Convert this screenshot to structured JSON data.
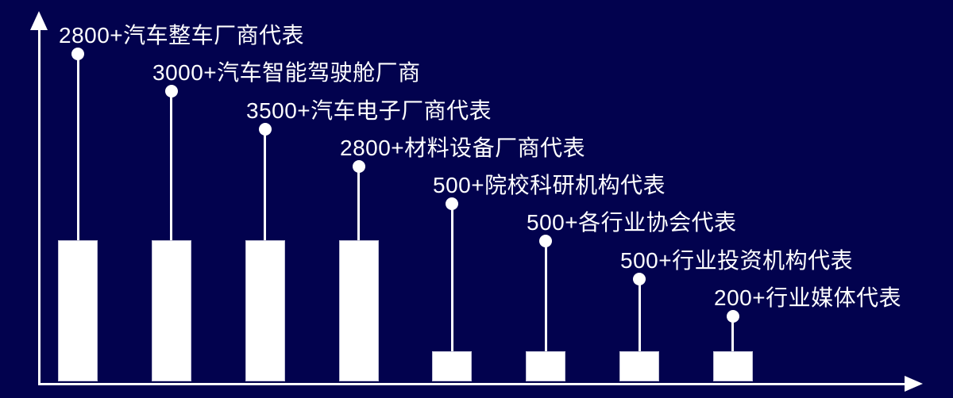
{
  "chart_data": {
    "type": "bar",
    "subtype": "lollipop-labeled pictorial bar chart",
    "title": "",
    "xlabel": "",
    "ylabel": "",
    "legend": "none",
    "gridlines": false,
    "axis_ticks": "none",
    "colors": {
      "background": "#02024e",
      "foreground": "#ffffff"
    },
    "categories": [
      "汽车整车厂商代表",
      "汽车智能驾驶舱厂商",
      "汽车电子厂商代表",
      "材料设备厂商代表",
      "院校科研机构代表",
      "各行业协会代表",
      "行业投资机构代表",
      "行业媒体代表"
    ],
    "values": [
      2800,
      3000,
      3500,
      2800,
      500,
      500,
      500,
      200
    ],
    "items": [
      {
        "label": "2800+汽车整车厂商代表",
        "value": 2800,
        "bar_size": "tall"
      },
      {
        "label": "3000+汽车智能驾驶舱厂商",
        "value": 3000,
        "bar_size": "tall"
      },
      {
        "label": "3500+汽车电子厂商代表",
        "value": 3500,
        "bar_size": "tall"
      },
      {
        "label": "2800+材料设备厂商代表",
        "value": 2800,
        "bar_size": "tall"
      },
      {
        "label": "500+院校科研机构代表",
        "value": 500,
        "bar_size": "short"
      },
      {
        "label": "500+各行业协会代表",
        "value": 500,
        "bar_size": "short"
      },
      {
        "label": "500+行业投资机构代表",
        "value": 500,
        "bar_size": "short"
      },
      {
        "label": "200+行业媒体代表",
        "value": 200,
        "bar_size": "short"
      }
    ]
  }
}
